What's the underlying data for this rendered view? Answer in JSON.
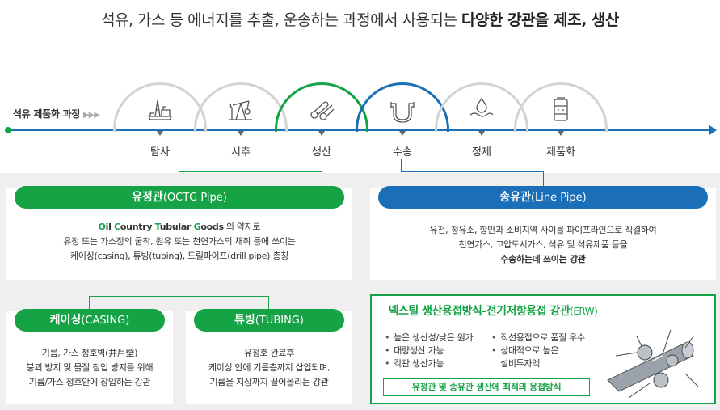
{
  "headline": {
    "prefix": "석유, 가스 등 에너지를 추출, 운송하는 과정에서 사용되는 ",
    "emphasis": "다양한 강관을 제조, 생산"
  },
  "process": {
    "label": "석유 제품화 과정",
    "chevrons": "▶▶▶",
    "stages": [
      {
        "name": "탐사",
        "icon": "drilling-rig-icon"
      },
      {
        "name": "시추",
        "icon": "pumpjack-icon"
      },
      {
        "name": "생산",
        "icon": "pipes-icon"
      },
      {
        "name": "수송",
        "icon": "pipeline-icon"
      },
      {
        "name": "정제",
        "icon": "refining-drop-icon"
      },
      {
        "name": "제품화",
        "icon": "barrel-icon"
      }
    ]
  },
  "octg": {
    "title_bold": "유정관",
    "title_rest": "(OCTG Pipe)",
    "def_o": "O",
    "def_o_rest": "il ",
    "def_c": "C",
    "def_c_rest": "ountry ",
    "def_t": "T",
    "def_t_rest": "ubular ",
    "def_g": "G",
    "def_g_rest": "oods",
    "def_suffix": " 의 약자로",
    "line2": "유정 또는 가스정의 굴착, 원유 또는 천연가스의 채취 등에 쓰이는",
    "line3": "케이싱(casing), 튜빙(tubing), 드릴파이프(drill pipe) 총칭"
  },
  "linepipe": {
    "title_bold": "송유관",
    "title_rest": "(Line Pipe)",
    "line1": "유전, 정유소, 항만과 소비지역 사이를 파이프라인으로 직결하여",
    "line2": "천연가스, 고압도시가스, 석유 및 석유제품 등을",
    "line3": "수송하는데 쓰이는 강관"
  },
  "casing": {
    "title_bold": "케이싱",
    "title_rest": "(CASING)",
    "line1": "기름, 가스 정호벽(井戶壁)",
    "line2": "붕괴 방지 및 물질 침입 방지를 위해",
    "line3": "기름/가스 정호안에 장입하는 강관"
  },
  "tubing": {
    "title_bold": "튜빙",
    "title_rest": "(TUBING)",
    "line1": "유정호 완료후",
    "line2": "케이싱 안에 기름층까지 삽입되며,",
    "line3": "기름을 지상까지 끌어올리는 강관"
  },
  "erw": {
    "title_bold": "넥스틸 생산용접방식-전기저항용접 강관",
    "title_rest": "(ERW)",
    "left_bullets": [
      "높은 생산성/낮은 원가",
      "대량생산 가능",
      "각관 생산가능"
    ],
    "right_bullets": [
      "직선용접으로 품질 우수",
      "상대적으로 높은",
      "설비투자액"
    ],
    "footer": "유정관 및 송유관 생산에 최적의 용접방식"
  },
  "colors": {
    "green": "#15a346",
    "blue": "#1b6fb8",
    "panel": "#efefef"
  }
}
